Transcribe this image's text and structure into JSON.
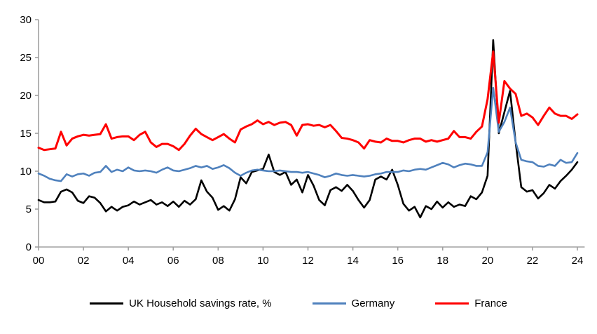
{
  "chart_data": {
    "type": "line",
    "title": "",
    "xlabel": "",
    "ylabel": "",
    "x_start_year": 2000,
    "points_per_year": 4,
    "x_tick_labels": [
      "00",
      "02",
      "04",
      "06",
      "08",
      "10",
      "12",
      "14",
      "16",
      "18",
      "20",
      "22",
      "24"
    ],
    "x_tick_years": [
      0,
      2,
      4,
      6,
      8,
      10,
      12,
      14,
      16,
      18,
      20,
      22,
      24
    ],
    "y_ticks": [
      0,
      5,
      10,
      15,
      20,
      25,
      30
    ],
    "ylim": [
      0,
      30
    ],
    "xlim_years": [
      0,
      24.2
    ],
    "grid": false,
    "legend_position": "bottom",
    "axis_color": "#a0a0a0",
    "series": [
      {
        "name": "UK Household savings rate, %",
        "color": "#000000",
        "stroke_width": 2.6,
        "values": [
          6.2,
          5.9,
          5.9,
          6.0,
          7.3,
          7.6,
          7.2,
          6.1,
          5.8,
          6.7,
          6.5,
          5.8,
          4.7,
          5.3,
          4.8,
          5.3,
          5.5,
          6.0,
          5.6,
          5.9,
          6.2,
          5.6,
          5.9,
          5.4,
          6.0,
          5.3,
          6.1,
          5.6,
          6.3,
          8.8,
          7.3,
          6.5,
          4.9,
          5.4,
          4.8,
          6.3,
          9.2,
          8.4,
          9.9,
          10.1,
          10.3,
          12.2,
          9.9,
          9.5,
          9.9,
          8.2,
          8.9,
          7.2,
          9.5,
          8.1,
          6.2,
          5.5,
          7.5,
          7.9,
          7.4,
          8.2,
          7.4,
          6.2,
          5.2,
          6.2,
          8.9,
          9.3,
          8.9,
          10.2,
          8.2,
          5.7,
          4.8,
          5.3,
          3.9,
          5.4,
          5.0,
          6.0,
          5.2,
          5.9,
          5.3,
          5.6,
          5.4,
          6.7,
          6.3,
          7.2,
          9.4,
          27.3,
          15.0,
          17.8,
          20.6,
          13.8,
          7.9,
          7.3,
          7.5,
          6.4,
          7.1,
          8.2,
          7.7,
          8.7,
          9.4,
          10.2,
          11.2
        ]
      },
      {
        "name": "Germany",
        "color": "#4f81bd",
        "stroke_width": 2.6,
        "values": [
          9.7,
          9.4,
          9.0,
          8.8,
          8.7,
          9.6,
          9.3,
          9.6,
          9.7,
          9.4,
          9.8,
          9.9,
          10.7,
          9.9,
          10.2,
          10.0,
          10.5,
          10.1,
          10.0,
          10.1,
          10.0,
          9.8,
          10.2,
          10.5,
          10.1,
          10.0,
          10.2,
          10.4,
          10.7,
          10.5,
          10.7,
          10.3,
          10.5,
          10.8,
          10.4,
          9.8,
          9.4,
          9.8,
          10.1,
          10.2,
          10.1,
          10.0,
          10.0,
          10.1,
          10.0,
          9.9,
          9.9,
          9.8,
          9.9,
          9.7,
          9.5,
          9.2,
          9.4,
          9.7,
          9.5,
          9.4,
          9.5,
          9.4,
          9.3,
          9.4,
          9.6,
          9.7,
          9.9,
          9.9,
          9.9,
          10.1,
          10.0,
          10.2,
          10.3,
          10.2,
          10.5,
          10.8,
          11.1,
          10.9,
          10.5,
          10.8,
          11.0,
          10.9,
          10.7,
          10.7,
          12.5,
          21.0,
          15.2,
          16.5,
          18.4,
          13.8,
          11.5,
          11.3,
          11.2,
          10.7,
          10.6,
          10.9,
          10.7,
          11.5,
          11.1,
          11.2,
          12.4
        ]
      },
      {
        "name": "France",
        "color": "#ff0000",
        "stroke_width": 3.0,
        "values": [
          13.1,
          12.8,
          12.9,
          13.0,
          15.2,
          13.4,
          14.3,
          14.6,
          14.8,
          14.7,
          14.8,
          14.9,
          16.2,
          14.3,
          14.5,
          14.6,
          14.6,
          14.1,
          14.8,
          15.2,
          13.8,
          13.2,
          13.6,
          13.6,
          13.3,
          12.8,
          13.6,
          14.7,
          15.6,
          14.9,
          14.5,
          14.1,
          14.5,
          14.9,
          14.3,
          13.8,
          15.5,
          15.9,
          16.2,
          16.7,
          16.2,
          16.5,
          16.1,
          16.4,
          16.5,
          16.1,
          14.7,
          16.1,
          16.2,
          16.0,
          16.1,
          15.8,
          16.1,
          15.3,
          14.4,
          14.3,
          14.1,
          13.8,
          13.0,
          14.1,
          13.9,
          13.8,
          14.3,
          14.0,
          14.0,
          13.8,
          14.1,
          14.3,
          14.3,
          13.9,
          14.1,
          13.9,
          14.1,
          14.3,
          15.3,
          14.5,
          14.5,
          14.3,
          15.2,
          15.9,
          19.5,
          25.8,
          16.4,
          21.9,
          20.9,
          20.2,
          17.3,
          17.6,
          17.1,
          16.1,
          17.3,
          18.4,
          17.6,
          17.3,
          17.3,
          16.9,
          17.5
        ]
      }
    ]
  },
  "legend": {
    "items": [
      {
        "label": "UK Household savings rate, %",
        "color": "#000000"
      },
      {
        "label": "Germany",
        "color": "#4f81bd"
      },
      {
        "label": "France",
        "color": "#ff0000"
      }
    ]
  }
}
